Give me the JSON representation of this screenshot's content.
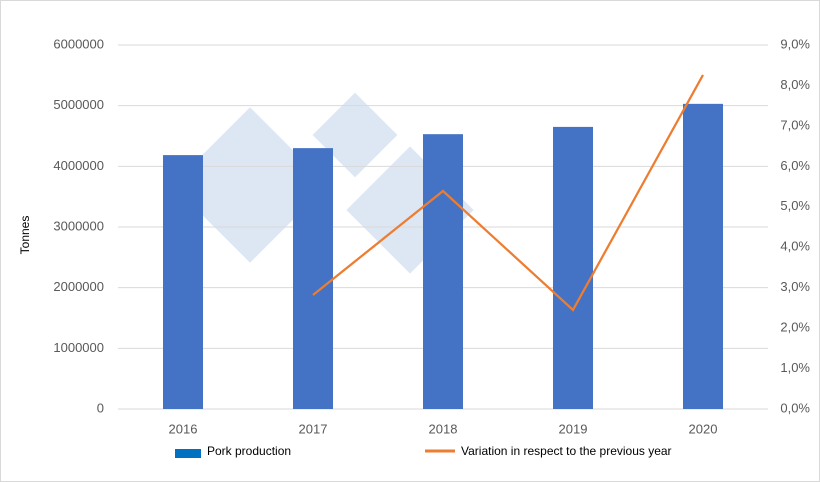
{
  "chart_data": {
    "type": "bar-line",
    "y_label": "Tonnes",
    "categories": [
      "2016",
      "2017",
      "2018",
      "2019",
      "2020"
    ],
    "series": [
      {
        "name": "Pork production",
        "type": "bar",
        "color": "#4472c4",
        "values": [
          4185000,
          4300000,
          4530000,
          4650000,
          5030000
        ]
      },
      {
        "name": "Variation in respect to the previous year",
        "type": "line",
        "axis": "y2",
        "color": "#ed7d31",
        "values": [
          null,
          2.82,
          5.39,
          2.45,
          8.26
        ]
      }
    ],
    "ylim": [
      0,
      6000000
    ],
    "yticks": [
      0,
      1000000,
      2000000,
      3000000,
      4000000,
      5000000,
      6000000
    ],
    "y2lim": [
      0,
      9
    ],
    "y2ticks": [
      {
        "value": 0,
        "label": "0,0%"
      },
      {
        "value": 1,
        "label": "1,0%"
      },
      {
        "value": 2,
        "label": "2,0%"
      },
      {
        "value": 3,
        "label": "3,0%"
      },
      {
        "value": 4,
        "label": "4,0%"
      },
      {
        "value": 5,
        "label": "5,0%"
      },
      {
        "value": 6,
        "label": "6,0%"
      },
      {
        "value": 7,
        "label": "7,0%"
      },
      {
        "value": 8,
        "label": "8,0%"
      },
      {
        "value": 9,
        "label": "9,0%"
      }
    ],
    "grid": true,
    "legend": "bottom"
  }
}
